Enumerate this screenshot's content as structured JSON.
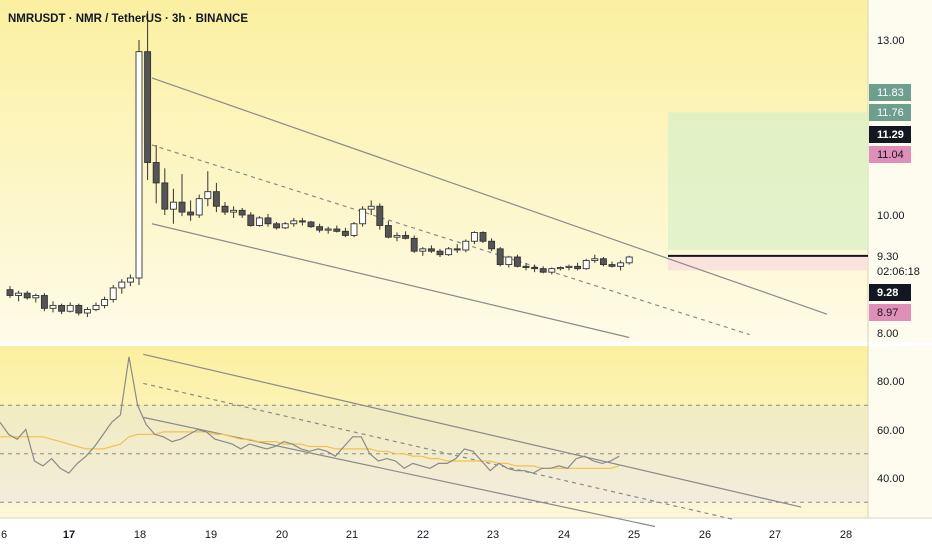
{
  "header": {
    "title": "NMRUSDT · NMR / TetherUS · 3h · BINANCE"
  },
  "colors": {
    "background_top": "#fbf3a6",
    "background_bottom": "#fdf8d6",
    "candle_up": "#ffffff",
    "candle_down": "#555555",
    "channel": "#8a8a8a",
    "rsi_line": "#8a8a8a",
    "rsi_ma": "#f2c14e",
    "tp_zone": "#d9f0c8",
    "sl_zone": "#f9dede",
    "badge_green": "#6e9f8e",
    "badge_black": "#131722",
    "badge_pink": "#e090b8"
  },
  "price_axis": {
    "ticks": [
      "13.00",
      "10.00",
      "8.00"
    ],
    "badges": [
      {
        "value": "11.83",
        "style": "green"
      },
      {
        "value": "11.76",
        "style": "green"
      },
      {
        "value": "11.29",
        "style": "black"
      },
      {
        "value": "11.04",
        "style": "pink"
      },
      {
        "value": "9.30",
        "style": "plain"
      },
      {
        "value": "02:06:18",
        "style": "plain"
      },
      {
        "value": "9.28",
        "style": "black"
      },
      {
        "value": "8.97",
        "style": "pink"
      }
    ]
  },
  "rsi_axis": {
    "ticks": [
      "80.00",
      "60.00",
      "40.00"
    ],
    "levels": [
      70,
      50,
      30
    ]
  },
  "time_axis": {
    "labels": [
      "6",
      "17",
      "18",
      "19",
      "20",
      "21",
      "22",
      "23",
      "24",
      "25",
      "26",
      "27",
      "28"
    ]
  },
  "chart_data": {
    "type": "candlestick",
    "symbol": "NMRUSDT",
    "interval": "3h",
    "ylim": [
      7.9,
      13.7
    ],
    "entry_price": 9.3,
    "tp_zone": [
      9.4,
      11.76
    ],
    "sl_zone": [
      9.05,
      9.3
    ],
    "ohlc": [
      [
        8.72,
        8.78,
        8.58,
        8.62
      ],
      [
        8.62,
        8.7,
        8.52,
        8.66
      ],
      [
        8.66,
        8.7,
        8.55,
        8.58
      ],
      [
        8.58,
        8.65,
        8.5,
        8.62
      ],
      [
        8.62,
        8.66,
        8.35,
        8.4
      ],
      [
        8.4,
        8.52,
        8.33,
        8.45
      ],
      [
        8.45,
        8.48,
        8.3,
        8.35
      ],
      [
        8.35,
        8.5,
        8.33,
        8.45
      ],
      [
        8.45,
        8.48,
        8.28,
        8.32
      ],
      [
        8.32,
        8.42,
        8.25,
        8.38
      ],
      [
        8.38,
        8.5,
        8.35,
        8.45
      ],
      [
        8.45,
        8.6,
        8.4,
        8.55
      ],
      [
        8.55,
        8.8,
        8.5,
        8.75
      ],
      [
        8.75,
        8.9,
        8.65,
        8.85
      ],
      [
        8.85,
        8.98,
        8.78,
        8.92
      ],
      [
        8.92,
        13.0,
        8.8,
        12.8
      ],
      [
        12.8,
        13.5,
        10.6,
        10.9
      ],
      [
        10.9,
        11.2,
        10.2,
        10.55
      ],
      [
        10.55,
        10.8,
        10.0,
        10.1
      ],
      [
        10.1,
        10.45,
        9.85,
        10.22
      ],
      [
        10.22,
        10.7,
        9.98,
        10.05
      ],
      [
        10.05,
        10.25,
        9.9,
        10.0
      ],
      [
        10.0,
        10.35,
        9.95,
        10.28
      ],
      [
        10.28,
        10.75,
        10.15,
        10.4
      ],
      [
        10.4,
        10.55,
        10.05,
        10.15
      ],
      [
        10.15,
        10.22,
        10.0,
        10.05
      ],
      [
        10.05,
        10.15,
        9.95,
        10.08
      ],
      [
        10.08,
        10.12,
        9.95,
        10.0
      ],
      [
        10.0,
        10.05,
        9.8,
        9.82
      ],
      [
        9.82,
        9.98,
        9.8,
        9.95
      ],
      [
        9.95,
        10.02,
        9.8,
        9.85
      ],
      [
        9.85,
        9.88,
        9.75,
        9.78
      ],
      [
        9.78,
        9.88,
        9.76,
        9.85
      ],
      [
        9.85,
        9.95,
        9.8,
        9.9
      ],
      [
        9.9,
        9.95,
        9.82,
        9.88
      ],
      [
        9.88,
        9.9,
        9.78,
        9.8
      ],
      [
        9.8,
        9.85,
        9.7,
        9.74
      ],
      [
        9.74,
        9.8,
        9.68,
        9.76
      ],
      [
        9.76,
        9.82,
        9.7,
        9.72
      ],
      [
        9.72,
        9.78,
        9.62,
        9.65
      ],
      [
        9.65,
        9.88,
        9.62,
        9.85
      ],
      [
        9.85,
        10.15,
        9.8,
        10.1
      ],
      [
        10.1,
        10.25,
        10.0,
        10.15
      ],
      [
        10.15,
        10.2,
        9.75,
        9.82
      ],
      [
        9.82,
        9.9,
        9.6,
        9.62
      ],
      [
        9.62,
        9.7,
        9.55,
        9.65
      ],
      [
        9.65,
        9.72,
        9.58,
        9.6
      ],
      [
        9.6,
        9.65,
        9.35,
        9.38
      ],
      [
        9.38,
        9.45,
        9.3,
        9.42
      ],
      [
        9.42,
        9.48,
        9.35,
        9.38
      ],
      [
        9.38,
        9.42,
        9.28,
        9.32
      ],
      [
        9.32,
        9.45,
        9.3,
        9.42
      ],
      [
        9.42,
        9.5,
        9.35,
        9.4
      ],
      [
        9.4,
        9.58,
        9.36,
        9.55
      ],
      [
        9.55,
        9.72,
        9.5,
        9.7
      ],
      [
        9.7,
        9.72,
        9.52,
        9.55
      ],
      [
        9.55,
        9.6,
        9.38,
        9.42
      ],
      [
        9.42,
        9.45,
        9.12,
        9.15
      ],
      [
        9.15,
        9.3,
        9.1,
        9.28
      ],
      [
        9.28,
        9.32,
        9.1,
        9.12
      ],
      [
        9.12,
        9.18,
        9.05,
        9.1
      ],
      [
        9.1,
        9.15,
        9.02,
        9.08
      ],
      [
        9.08,
        9.12,
        9.0,
        9.02
      ],
      [
        9.02,
        9.1,
        8.98,
        9.08
      ],
      [
        9.08,
        9.12,
        9.05,
        9.1
      ],
      [
        9.1,
        9.15,
        9.05,
        9.12
      ],
      [
        9.12,
        9.18,
        9.05,
        9.08
      ],
      [
        9.08,
        9.25,
        9.06,
        9.22
      ],
      [
        9.22,
        9.32,
        9.18,
        9.25
      ],
      [
        9.25,
        9.28,
        9.12,
        9.15
      ],
      [
        9.15,
        9.2,
        9.1,
        9.12
      ],
      [
        9.12,
        9.22,
        9.05,
        9.18
      ],
      [
        9.18,
        9.3,
        9.15,
        9.28
      ]
    ],
    "rsi": {
      "ylim": [
        22,
        92
      ],
      "values": [
        63,
        58,
        56,
        60,
        47,
        45,
        48,
        44,
        42,
        46,
        49,
        53,
        58,
        63,
        66,
        90,
        70,
        62,
        58,
        57,
        55,
        56,
        58,
        60,
        59,
        56,
        55,
        54,
        52,
        54,
        53,
        52,
        53,
        55,
        54,
        52,
        51,
        52,
        51,
        49,
        53,
        57,
        57,
        50,
        47,
        48,
        47,
        44,
        46,
        45,
        44,
        46,
        46,
        48,
        52,
        51,
        47,
        43,
        46,
        44,
        43,
        43,
        42,
        44,
        44,
        45,
        44,
        48,
        49,
        47,
        46,
        47,
        49
      ],
      "ma": [
        57,
        57,
        57,
        57,
        57,
        57,
        56,
        55,
        54,
        53,
        52,
        52,
        52,
        53,
        54,
        57,
        58,
        58,
        58,
        59,
        59,
        59,
        59,
        59,
        59,
        58,
        58,
        57,
        56,
        56,
        55,
        55,
        55,
        54,
        54,
        54,
        53,
        53,
        53,
        52,
        52,
        52,
        52,
        52,
        51,
        51,
        50,
        50,
        49,
        49,
        48,
        48,
        47,
        47,
        47,
        47,
        47,
        47,
        46,
        46,
        45,
        45,
        45,
        44,
        44,
        44,
        44,
        44,
        44,
        44,
        44,
        44,
        45
      ]
    },
    "channel_lines": [
      {
        "name": "upper",
        "i1": 16.5,
        "p1": 12.35,
        "i2": 95,
        "p2": 8.3
      },
      {
        "name": "mid",
        "i1": 16.5,
        "p1": 11.2,
        "i2": 86,
        "p2": 7.95,
        "dashed": true
      },
      {
        "name": "lower",
        "i1": 16.5,
        "p1": 9.85,
        "i2": 72,
        "p2": 7.9
      }
    ],
    "rsi_channel_lines": [
      {
        "name": "upper",
        "i1": 15.5,
        "r1": 91,
        "i2": 92,
        "r2": 28
      },
      {
        "name": "mid",
        "i1": 15.5,
        "r1": 79,
        "i2": 84,
        "r2": 23,
        "dashed": true
      },
      {
        "name": "lower",
        "i1": 15.5,
        "r1": 65,
        "i2": 75,
        "r2": 20
      }
    ]
  }
}
